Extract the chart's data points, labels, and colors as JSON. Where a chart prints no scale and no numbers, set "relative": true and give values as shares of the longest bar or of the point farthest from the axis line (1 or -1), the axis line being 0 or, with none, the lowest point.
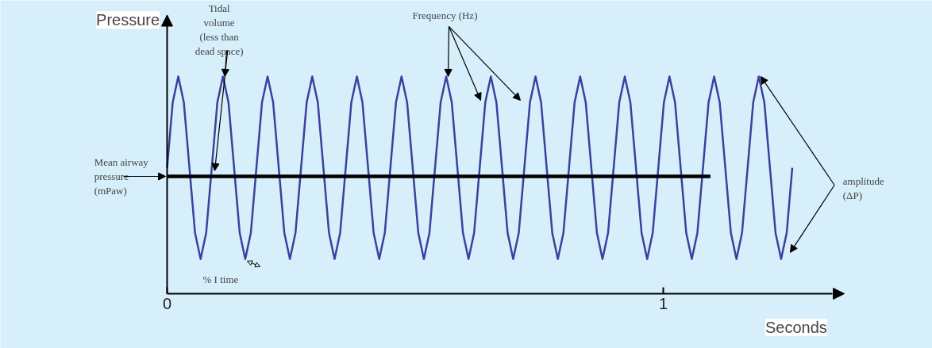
{
  "chart_data": {
    "type": "line",
    "relative": true,
    "xlabel": "Seconds",
    "ylabel": "Pressure",
    "xlim": [
      0,
      1.34
    ],
    "xticks": [
      0,
      1
    ],
    "grid": false,
    "marker": "none",
    "line_style": "solid",
    "series": [
      {
        "color": "#3f3f9f",
        "x": [
          0,
          0.01125,
          0.0225,
          0.03375,
          0.045,
          0.05625,
          0.0675,
          0.07875,
          0.09,
          0.10125,
          0.1125,
          0.12375,
          0.135,
          0.14625,
          0.1575,
          0.16875,
          0.18,
          0.19125,
          0.2025,
          0.21375,
          0.225,
          0.23625,
          0.2475,
          0.25875,
          0.27,
          0.28125,
          0.2925,
          0.30375,
          0.315,
          0.32625,
          0.3375,
          0.34875,
          0.36,
          0.37125,
          0.3825,
          0.39375,
          0.405,
          0.41625,
          0.4275,
          0.43875,
          0.45,
          0.46125,
          0.4725,
          0.48375,
          0.495,
          0.50625,
          0.5175,
          0.52875,
          0.54,
          0.55125,
          0.5625,
          0.57375,
          0.585,
          0.59625,
          0.6075,
          0.61875,
          0.63,
          0.64125,
          0.6525,
          0.66375,
          0.675,
          0.68625,
          0.6975,
          0.70875,
          0.72,
          0.73125,
          0.7425,
          0.75375,
          0.765,
          0.77625,
          0.7875,
          0.79875,
          0.81,
          0.82125,
          0.8325,
          0.84375,
          0.855,
          0.86625,
          0.8775,
          0.88875,
          0.9,
          0.91125,
          0.9225,
          0.93375,
          0.945,
          0.95625,
          0.9675,
          0.97875,
          0.99,
          1.00125,
          1.0125,
          1.02375,
          1.035,
          1.04625,
          1.0575,
          1.06875,
          1.08,
          1.09125,
          1.1025,
          1.11375,
          1.125,
          1.13625,
          1.1475,
          1.15875,
          1.17,
          1.18125,
          1.1925,
          1.20375,
          1.215,
          1.22625,
          1.2375,
          1.24875,
          1.26
        ],
        "values": [
          0.58,
          0.88,
          1.0,
          0.88,
          0.58,
          0.28,
          0.16,
          0.28,
          0.58,
          0.88,
          1.0,
          0.88,
          0.58,
          0.28,
          0.16,
          0.28,
          0.58,
          0.88,
          1.0,
          0.88,
          0.58,
          0.28,
          0.16,
          0.28,
          0.58,
          0.88,
          1.0,
          0.88,
          0.58,
          0.28,
          0.16,
          0.28,
          0.58,
          0.88,
          1.0,
          0.88,
          0.58,
          0.28,
          0.16,
          0.28,
          0.58,
          0.88,
          1.0,
          0.88,
          0.58,
          0.28,
          0.16,
          0.28,
          0.58,
          0.88,
          1.0,
          0.88,
          0.58,
          0.28,
          0.16,
          0.28,
          0.58,
          0.88,
          1.0,
          0.88,
          0.58,
          0.28,
          0.16,
          0.28,
          0.58,
          0.88,
          1.0,
          0.88,
          0.58,
          0.28,
          0.16,
          0.28,
          0.58,
          0.88,
          1.0,
          0.88,
          0.58,
          0.28,
          0.16,
          0.28,
          0.58,
          0.88,
          1.0,
          0.88,
          0.58,
          0.28,
          0.16,
          0.28,
          0.58,
          0.88,
          1.0,
          0.88,
          0.58,
          0.28,
          0.16,
          0.28,
          0.58,
          0.88,
          1.0,
          0.88,
          0.58,
          0.28,
          0.16,
          0.28,
          0.58,
          0.88,
          1.0,
          0.88,
          0.58,
          0.28,
          0.16,
          0.28,
          0.58
        ]
      },
      {
        "color": "#000000",
        "x": [
          0,
          1.095
        ],
        "values": [
          0.54,
          0.54
        ]
      }
    ],
    "annotations": [
      {
        "text": "Tidal\nvolume\n(less than\ndead space)",
        "x": 0.1125,
        "y": 1.0
      },
      {
        "text": "Frequency (Hz)",
        "x": 0.5625,
        "y": 1.0
      },
      {
        "text": "Mean airway\npressure\n(mPaw)",
        "x": 0,
        "y": 0.54
      },
      {
        "text": "amplitude\n(ΔP)",
        "x": 1.1925,
        "y": 1.0
      },
      {
        "text": "% I time",
        "x": 0.1575,
        "y": 0.16
      }
    ]
  }
}
